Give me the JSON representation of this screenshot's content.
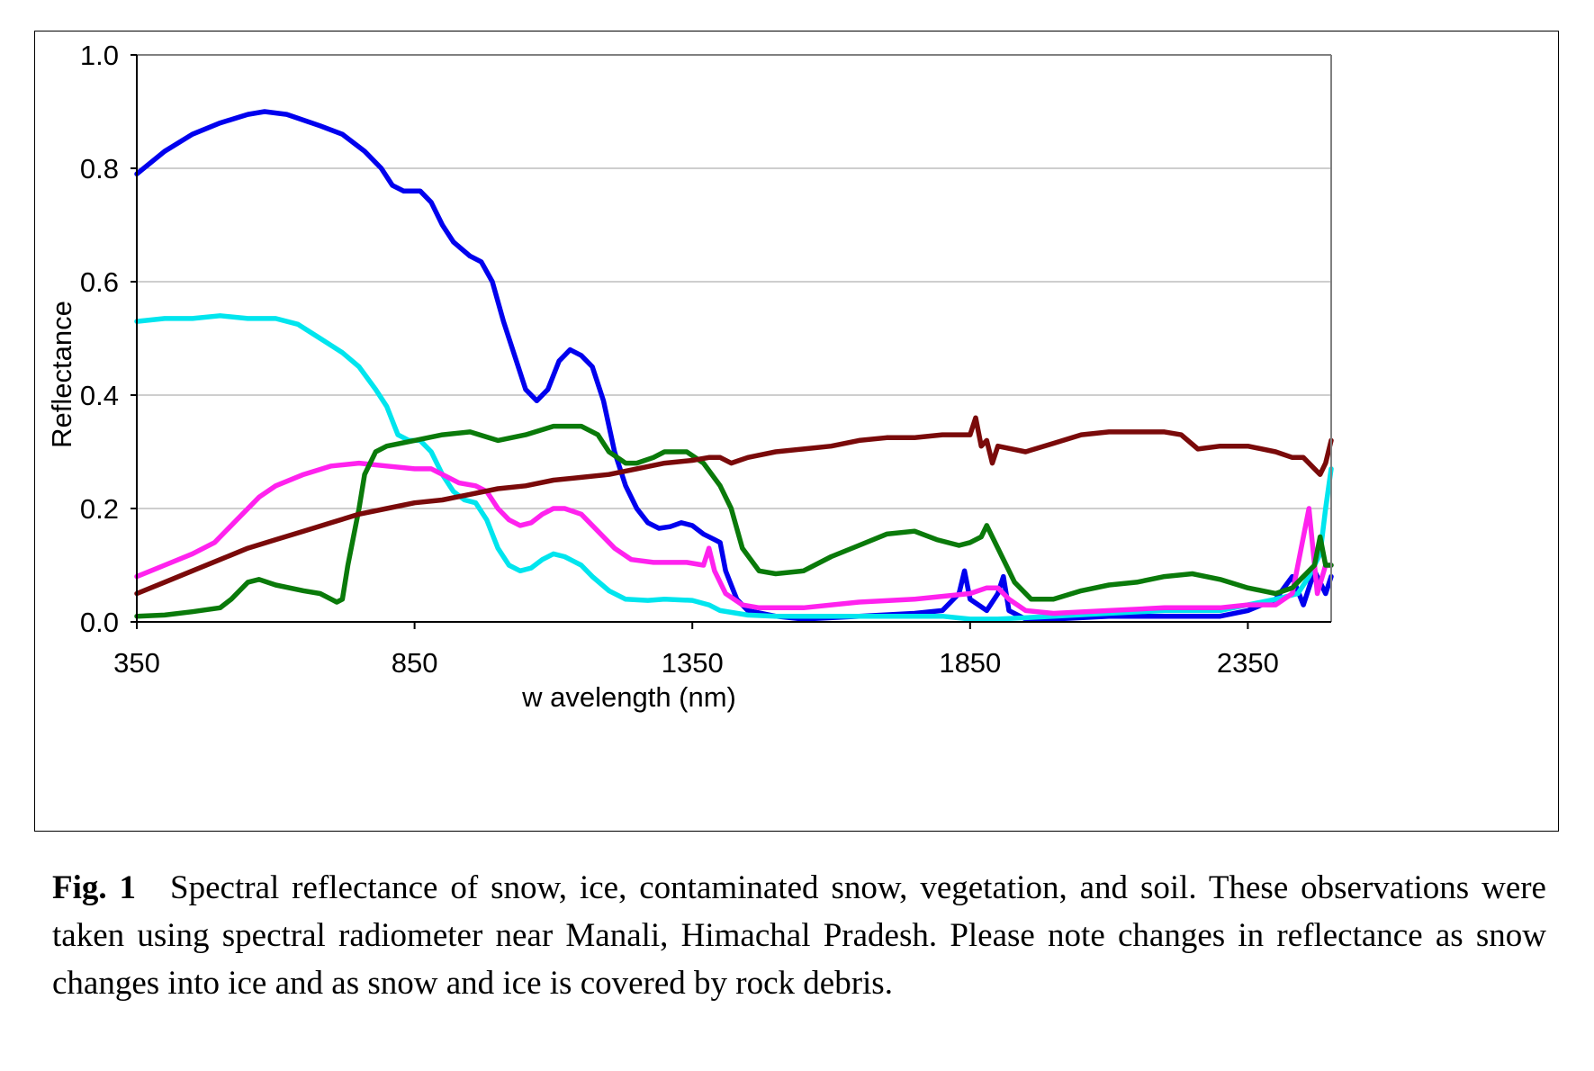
{
  "chart_data": {
    "type": "line",
    "title": "",
    "xlabel": "w avelength (nm)",
    "ylabel": "Reflectance",
    "xlim": [
      350,
      2500
    ],
    "ylim": [
      0.0,
      1.0
    ],
    "xticks": [
      350,
      850,
      1350,
      1850,
      2350
    ],
    "xtick_labels": [
      "350",
      "850",
      "1350",
      "1850",
      "2350"
    ],
    "yticks": [
      0.0,
      0.2,
      0.4,
      0.6,
      0.8,
      1.0
    ],
    "ytick_labels": [
      "0.0",
      "0.2",
      "0.4",
      "0.6",
      "0.8",
      "1.0"
    ],
    "grid": "horizontal",
    "legend": "none",
    "series": [
      {
        "name": "snow",
        "color": "#0000ee",
        "points": [
          [
            350,
            0.79
          ],
          [
            400,
            0.83
          ],
          [
            450,
            0.86
          ],
          [
            500,
            0.88
          ],
          [
            550,
            0.895
          ],
          [
            580,
            0.9
          ],
          [
            620,
            0.895
          ],
          [
            680,
            0.875
          ],
          [
            720,
            0.86
          ],
          [
            760,
            0.83
          ],
          [
            790,
            0.8
          ],
          [
            810,
            0.77
          ],
          [
            830,
            0.76
          ],
          [
            860,
            0.76
          ],
          [
            880,
            0.74
          ],
          [
            900,
            0.7
          ],
          [
            920,
            0.67
          ],
          [
            950,
            0.645
          ],
          [
            970,
            0.635
          ],
          [
            990,
            0.6
          ],
          [
            1010,
            0.53
          ],
          [
            1030,
            0.47
          ],
          [
            1050,
            0.41
          ],
          [
            1070,
            0.39
          ],
          [
            1090,
            0.41
          ],
          [
            1110,
            0.46
          ],
          [
            1130,
            0.48
          ],
          [
            1150,
            0.47
          ],
          [
            1170,
            0.45
          ],
          [
            1190,
            0.39
          ],
          [
            1210,
            0.3
          ],
          [
            1230,
            0.24
          ],
          [
            1250,
            0.2
          ],
          [
            1270,
            0.175
          ],
          [
            1290,
            0.165
          ],
          [
            1310,
            0.168
          ],
          [
            1330,
            0.175
          ],
          [
            1350,
            0.17
          ],
          [
            1370,
            0.155
          ],
          [
            1390,
            0.145
          ],
          [
            1400,
            0.14
          ],
          [
            1410,
            0.09
          ],
          [
            1430,
            0.04
          ],
          [
            1450,
            0.02
          ],
          [
            1500,
            0.01
          ],
          [
            1550,
            0.005
          ],
          [
            1650,
            0.01
          ],
          [
            1750,
            0.015
          ],
          [
            1800,
            0.02
          ],
          [
            1830,
            0.05
          ],
          [
            1840,
            0.09
          ],
          [
            1850,
            0.04
          ],
          [
            1880,
            0.02
          ],
          [
            1900,
            0.05
          ],
          [
            1910,
            0.08
          ],
          [
            1920,
            0.02
          ],
          [
            1950,
            0.005
          ],
          [
            2000,
            0.005
          ],
          [
            2100,
            0.01
          ],
          [
            2200,
            0.01
          ],
          [
            2300,
            0.01
          ],
          [
            2350,
            0.02
          ],
          [
            2400,
            0.04
          ],
          [
            2430,
            0.08
          ],
          [
            2450,
            0.03
          ],
          [
            2470,
            0.09
          ],
          [
            2490,
            0.05
          ],
          [
            2500,
            0.08
          ]
        ]
      },
      {
        "name": "ice",
        "color": "#00e5ee",
        "points": [
          [
            350,
            0.53
          ],
          [
            400,
            0.535
          ],
          [
            450,
            0.535
          ],
          [
            500,
            0.54
          ],
          [
            550,
            0.535
          ],
          [
            580,
            0.535
          ],
          [
            600,
            0.535
          ],
          [
            640,
            0.525
          ],
          [
            680,
            0.5
          ],
          [
            720,
            0.475
          ],
          [
            750,
            0.45
          ],
          [
            780,
            0.41
          ],
          [
            800,
            0.38
          ],
          [
            820,
            0.33
          ],
          [
            840,
            0.32
          ],
          [
            860,
            0.32
          ],
          [
            880,
            0.3
          ],
          [
            900,
            0.26
          ],
          [
            920,
            0.23
          ],
          [
            940,
            0.215
          ],
          [
            960,
            0.21
          ],
          [
            980,
            0.18
          ],
          [
            1000,
            0.13
          ],
          [
            1020,
            0.1
          ],
          [
            1040,
            0.09
          ],
          [
            1060,
            0.095
          ],
          [
            1080,
            0.11
          ],
          [
            1100,
            0.12
          ],
          [
            1120,
            0.115
          ],
          [
            1150,
            0.1
          ],
          [
            1170,
            0.08
          ],
          [
            1200,
            0.055
          ],
          [
            1230,
            0.04
          ],
          [
            1270,
            0.038
          ],
          [
            1300,
            0.04
          ],
          [
            1350,
            0.038
          ],
          [
            1380,
            0.03
          ],
          [
            1400,
            0.02
          ],
          [
            1450,
            0.012
          ],
          [
            1500,
            0.01
          ],
          [
            1600,
            0.01
          ],
          [
            1700,
            0.01
          ],
          [
            1800,
            0.01
          ],
          [
            1850,
            0.005
          ],
          [
            1900,
            0.005
          ],
          [
            2000,
            0.01
          ],
          [
            2100,
            0.015
          ],
          [
            2200,
            0.02
          ],
          [
            2300,
            0.02
          ],
          [
            2350,
            0.03
          ],
          [
            2400,
            0.04
          ],
          [
            2440,
            0.05
          ],
          [
            2460,
            0.08
          ],
          [
            2480,
            0.12
          ],
          [
            2490,
            0.2
          ],
          [
            2500,
            0.27
          ]
        ]
      },
      {
        "name": "contaminated snow",
        "color": "#ff22ee",
        "points": [
          [
            350,
            0.08
          ],
          [
            400,
            0.1
          ],
          [
            450,
            0.12
          ],
          [
            490,
            0.14
          ],
          [
            530,
            0.18
          ],
          [
            570,
            0.22
          ],
          [
            600,
            0.24
          ],
          [
            650,
            0.26
          ],
          [
            700,
            0.275
          ],
          [
            750,
            0.28
          ],
          [
            800,
            0.275
          ],
          [
            850,
            0.27
          ],
          [
            880,
            0.27
          ],
          [
            900,
            0.26
          ],
          [
            930,
            0.245
          ],
          [
            960,
            0.24
          ],
          [
            980,
            0.23
          ],
          [
            1000,
            0.2
          ],
          [
            1020,
            0.18
          ],
          [
            1040,
            0.17
          ],
          [
            1060,
            0.175
          ],
          [
            1080,
            0.19
          ],
          [
            1100,
            0.2
          ],
          [
            1120,
            0.2
          ],
          [
            1150,
            0.19
          ],
          [
            1180,
            0.16
          ],
          [
            1210,
            0.13
          ],
          [
            1240,
            0.11
          ],
          [
            1280,
            0.105
          ],
          [
            1340,
            0.105
          ],
          [
            1370,
            0.1
          ],
          [
            1380,
            0.13
          ],
          [
            1390,
            0.09
          ],
          [
            1410,
            0.05
          ],
          [
            1440,
            0.03
          ],
          [
            1470,
            0.025
          ],
          [
            1550,
            0.025
          ],
          [
            1650,
            0.035
          ],
          [
            1750,
            0.04
          ],
          [
            1800,
            0.045
          ],
          [
            1850,
            0.05
          ],
          [
            1880,
            0.06
          ],
          [
            1900,
            0.06
          ],
          [
            1920,
            0.04
          ],
          [
            1950,
            0.02
          ],
          [
            2000,
            0.015
          ],
          [
            2100,
            0.02
          ],
          [
            2200,
            0.025
          ],
          [
            2300,
            0.025
          ],
          [
            2350,
            0.03
          ],
          [
            2400,
            0.03
          ],
          [
            2430,
            0.05
          ],
          [
            2460,
            0.2
          ],
          [
            2475,
            0.05
          ],
          [
            2490,
            0.1
          ],
          [
            2500,
            0.1
          ]
        ]
      },
      {
        "name": "vegetation",
        "color": "#0a7a0a",
        "points": [
          [
            350,
            0.01
          ],
          [
            400,
            0.012
          ],
          [
            450,
            0.018
          ],
          [
            500,
            0.025
          ],
          [
            520,
            0.04
          ],
          [
            550,
            0.07
          ],
          [
            570,
            0.075
          ],
          [
            600,
            0.065
          ],
          [
            650,
            0.055
          ],
          [
            680,
            0.05
          ],
          [
            700,
            0.04
          ],
          [
            710,
            0.035
          ],
          [
            720,
            0.04
          ],
          [
            730,
            0.1
          ],
          [
            750,
            0.2
          ],
          [
            760,
            0.26
          ],
          [
            780,
            0.3
          ],
          [
            800,
            0.31
          ],
          [
            850,
            0.32
          ],
          [
            900,
            0.33
          ],
          [
            950,
            0.335
          ],
          [
            1000,
            0.32
          ],
          [
            1050,
            0.33
          ],
          [
            1100,
            0.345
          ],
          [
            1150,
            0.345
          ],
          [
            1180,
            0.33
          ],
          [
            1200,
            0.3
          ],
          [
            1230,
            0.28
          ],
          [
            1250,
            0.28
          ],
          [
            1280,
            0.29
          ],
          [
            1300,
            0.3
          ],
          [
            1340,
            0.3
          ],
          [
            1370,
            0.28
          ],
          [
            1400,
            0.24
          ],
          [
            1420,
            0.2
          ],
          [
            1440,
            0.13
          ],
          [
            1470,
            0.09
          ],
          [
            1500,
            0.085
          ],
          [
            1550,
            0.09
          ],
          [
            1600,
            0.115
          ],
          [
            1650,
            0.135
          ],
          [
            1700,
            0.155
          ],
          [
            1750,
            0.16
          ],
          [
            1790,
            0.145
          ],
          [
            1830,
            0.135
          ],
          [
            1850,
            0.14
          ],
          [
            1870,
            0.15
          ],
          [
            1880,
            0.17
          ],
          [
            1900,
            0.13
          ],
          [
            1930,
            0.07
          ],
          [
            1960,
            0.04
          ],
          [
            2000,
            0.04
          ],
          [
            2050,
            0.055
          ],
          [
            2100,
            0.065
          ],
          [
            2150,
            0.07
          ],
          [
            2200,
            0.08
          ],
          [
            2250,
            0.085
          ],
          [
            2300,
            0.075
          ],
          [
            2350,
            0.06
          ],
          [
            2400,
            0.05
          ],
          [
            2430,
            0.06
          ],
          [
            2450,
            0.08
          ],
          [
            2470,
            0.1
          ],
          [
            2480,
            0.15
          ],
          [
            2490,
            0.1
          ],
          [
            2500,
            0.1
          ]
        ]
      },
      {
        "name": "soil",
        "color": "#7a0a0a",
        "points": [
          [
            350,
            0.05
          ],
          [
            400,
            0.07
          ],
          [
            450,
            0.09
          ],
          [
            500,
            0.11
          ],
          [
            550,
            0.13
          ],
          [
            600,
            0.145
          ],
          [
            650,
            0.16
          ],
          [
            700,
            0.175
          ],
          [
            750,
            0.19
          ],
          [
            800,
            0.2
          ],
          [
            850,
            0.21
          ],
          [
            900,
            0.215
          ],
          [
            950,
            0.225
          ],
          [
            1000,
            0.235
          ],
          [
            1050,
            0.24
          ],
          [
            1100,
            0.25
          ],
          [
            1150,
            0.255
          ],
          [
            1200,
            0.26
          ],
          [
            1250,
            0.27
          ],
          [
            1300,
            0.28
          ],
          [
            1350,
            0.285
          ],
          [
            1380,
            0.29
          ],
          [
            1400,
            0.29
          ],
          [
            1420,
            0.28
          ],
          [
            1450,
            0.29
          ],
          [
            1500,
            0.3
          ],
          [
            1550,
            0.305
          ],
          [
            1600,
            0.31
          ],
          [
            1650,
            0.32
          ],
          [
            1700,
            0.325
          ],
          [
            1750,
            0.325
          ],
          [
            1800,
            0.33
          ],
          [
            1830,
            0.33
          ],
          [
            1850,
            0.33
          ],
          [
            1860,
            0.36
          ],
          [
            1870,
            0.31
          ],
          [
            1880,
            0.32
          ],
          [
            1890,
            0.28
          ],
          [
            1900,
            0.31
          ],
          [
            1950,
            0.3
          ],
          [
            2000,
            0.315
          ],
          [
            2050,
            0.33
          ],
          [
            2100,
            0.335
          ],
          [
            2150,
            0.335
          ],
          [
            2200,
            0.335
          ],
          [
            2230,
            0.33
          ],
          [
            2260,
            0.305
          ],
          [
            2300,
            0.31
          ],
          [
            2350,
            0.31
          ],
          [
            2400,
            0.3
          ],
          [
            2430,
            0.29
          ],
          [
            2450,
            0.29
          ],
          [
            2470,
            0.27
          ],
          [
            2480,
            0.26
          ],
          [
            2490,
            0.28
          ],
          [
            2500,
            0.32
          ]
        ]
      }
    ]
  },
  "caption": {
    "label": "Fig. 1",
    "text": "Spectral reflectance of snow, ice, contaminated snow, vegetation, and soil. These observations were taken using spectral radiometer near Manali, Himachal Pradesh. Please note changes in reflectance as snow changes into ice and as snow and ice is covered by rock debris."
  }
}
